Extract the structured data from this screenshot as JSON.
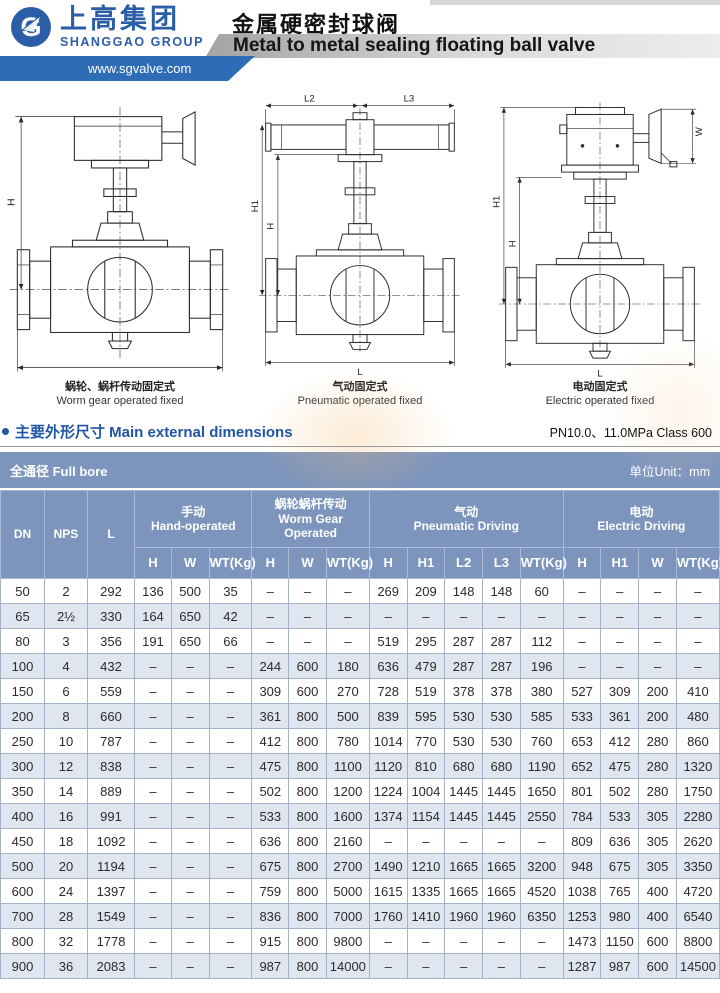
{
  "header": {
    "logo_cn": "上高集团",
    "logo_en": "SHANGGAO GROUP",
    "website": "www.sgvalve.com",
    "title_cn": "金属硬密封球阀",
    "title_en": "Metal to metal sealing floating ball valve",
    "brand_color": "#2b5ea7"
  },
  "drawings": [
    {
      "caption_cn": "蜗轮、蜗杆传动固定式",
      "caption_en": "Worm gear operated fixed",
      "dims": {
        "h": "H"
      }
    },
    {
      "caption_cn": "气动固定式",
      "caption_en": "Pneumatic operated fixed",
      "dims": {
        "l2": "L2",
        "l3": "L3",
        "h1": "H1",
        "h": "H",
        "l": "L"
      }
    },
    {
      "caption_cn": "电动固定式",
      "caption_en": "Electric operated fixed",
      "dims": {
        "h1": "H1",
        "h": "H",
        "w": "W",
        "l": "L"
      }
    }
  ],
  "section": {
    "title": "主要外形尺寸 Main external dimensions",
    "pressure_class": "PN10.0、11.0MPa Class 600",
    "bore": "全通径 Full bore",
    "unit": "单位Unit：mm"
  },
  "table": {
    "base_cols": [
      "DN",
      "NPS",
      "L"
    ],
    "groups": [
      {
        "cn": "手动",
        "en": "Hand-operated",
        "cols": [
          "H",
          "W",
          "WT(Kg)"
        ]
      },
      {
        "cn": "蜗轮蜗杆传动",
        "en": "Worm Gear Operated",
        "cols": [
          "H",
          "W",
          "WT(Kg)"
        ]
      },
      {
        "cn": "气动",
        "en": "Pneumatic Driving",
        "cols": [
          "H",
          "H1",
          "L2",
          "L3",
          "WT(Kg)"
        ]
      },
      {
        "cn": "电动",
        "en": "Electric Driving",
        "cols": [
          "H",
          "H1",
          "W",
          "WT(Kg)"
        ]
      }
    ],
    "rows": [
      [
        "50",
        "2",
        "292",
        "136",
        "500",
        "35",
        "–",
        "–",
        "–",
        "269",
        "209",
        "148",
        "148",
        "60",
        "–",
        "–",
        "–",
        "–"
      ],
      [
        "65",
        "2½",
        "330",
        "164",
        "650",
        "42",
        "–",
        "–",
        "–",
        "–",
        "–",
        "–",
        "–",
        "–",
        "–",
        "–",
        "–",
        "–"
      ],
      [
        "80",
        "3",
        "356",
        "191",
        "650",
        "66",
        "–",
        "–",
        "–",
        "519",
        "295",
        "287",
        "287",
        "112",
        "–",
        "–",
        "–",
        "–"
      ],
      [
        "100",
        "4",
        "432",
        "–",
        "–",
        "–",
        "244",
        "600",
        "180",
        "636",
        "479",
        "287",
        "287",
        "196",
        "–",
        "–",
        "–",
        "–"
      ],
      [
        "150",
        "6",
        "559",
        "–",
        "–",
        "–",
        "309",
        "600",
        "270",
        "728",
        "519",
        "378",
        "378",
        "380",
        "527",
        "309",
        "200",
        "410"
      ],
      [
        "200",
        "8",
        "660",
        "–",
        "–",
        "–",
        "361",
        "800",
        "500",
        "839",
        "595",
        "530",
        "530",
        "585",
        "533",
        "361",
        "200",
        "480"
      ],
      [
        "250",
        "10",
        "787",
        "–",
        "–",
        "–",
        "412",
        "800",
        "780",
        "1014",
        "770",
        "530",
        "530",
        "760",
        "653",
        "412",
        "280",
        "860"
      ],
      [
        "300",
        "12",
        "838",
        "–",
        "–",
        "–",
        "475",
        "800",
        "1100",
        "1120",
        "810",
        "680",
        "680",
        "1190",
        "652",
        "475",
        "280",
        "1320"
      ],
      [
        "350",
        "14",
        "889",
        "–",
        "–",
        "–",
        "502",
        "800",
        "1200",
        "1224",
        "1004",
        "1445",
        "1445",
        "1650",
        "801",
        "502",
        "280",
        "1750"
      ],
      [
        "400",
        "16",
        "991",
        "–",
        "–",
        "–",
        "533",
        "800",
        "1600",
        "1374",
        "1154",
        "1445",
        "1445",
        "2550",
        "784",
        "533",
        "305",
        "2280"
      ],
      [
        "450",
        "18",
        "1092",
        "–",
        "–",
        "–",
        "636",
        "800",
        "2160",
        "–",
        "–",
        "–",
        "–",
        "–",
        "809",
        "636",
        "305",
        "2620"
      ],
      [
        "500",
        "20",
        "1194",
        "–",
        "–",
        "–",
        "675",
        "800",
        "2700",
        "1490",
        "1210",
        "1665",
        "1665",
        "3200",
        "948",
        "675",
        "305",
        "3350"
      ],
      [
        "600",
        "24",
        "1397",
        "–",
        "–",
        "–",
        "759",
        "800",
        "5000",
        "1615",
        "1335",
        "1665",
        "1665",
        "4520",
        "1038",
        "765",
        "400",
        "4720"
      ],
      [
        "700",
        "28",
        "1549",
        "–",
        "–",
        "–",
        "836",
        "800",
        "7000",
        "1760",
        "1410",
        "1960",
        "1960",
        "6350",
        "1253",
        "980",
        "400",
        "6540"
      ],
      [
        "800",
        "32",
        "1778",
        "–",
        "–",
        "–",
        "915",
        "800",
        "9800",
        "–",
        "–",
        "–",
        "–",
        "–",
        "1473",
        "1150",
        "600",
        "8800"
      ],
      [
        "900",
        "36",
        "2083",
        "–",
        "–",
        "–",
        "987",
        "800",
        "14000",
        "–",
        "–",
        "–",
        "–",
        "–",
        "1287",
        "987",
        "600",
        "14500"
      ]
    ]
  }
}
